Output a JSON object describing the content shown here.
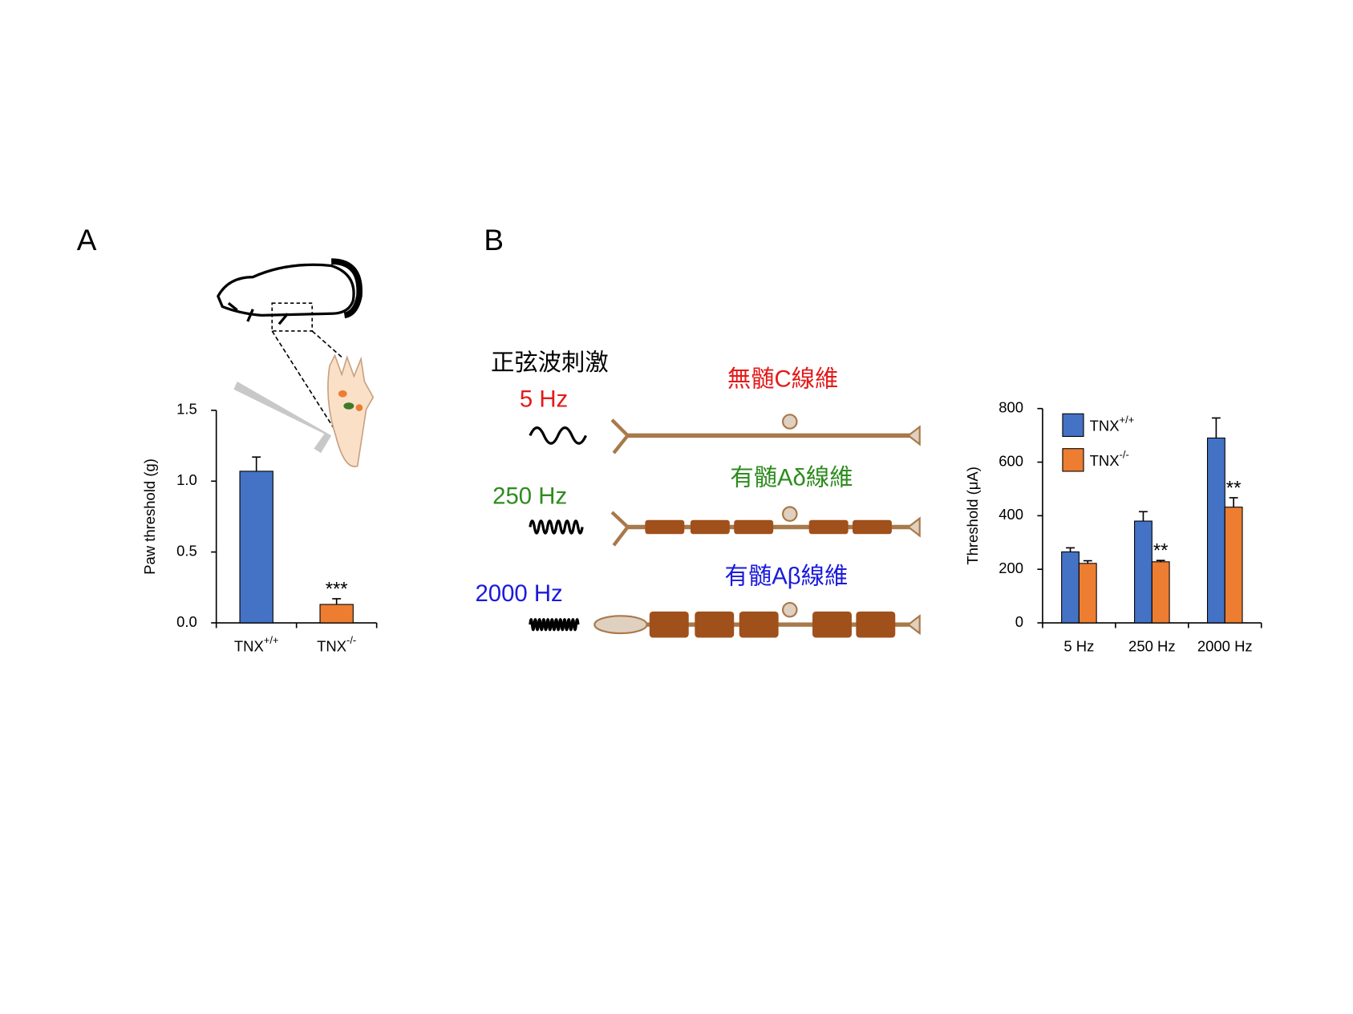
{
  "panels": [
    "A",
    "B"
  ],
  "diagram": {
    "stimulus_title": "正弦波刺激",
    "frequencies": [
      "5 Hz",
      "250 Hz",
      "2000 Hz"
    ],
    "fibers": [
      "無髄C線維",
      "有髄Aδ線維",
      "有髄Aβ線維"
    ]
  },
  "chart_data": [
    {
      "type": "bar",
      "ylabel": "Paw threshold (g)",
      "categories": [
        "TNX+/+",
        "TNX-/-"
      ],
      "values": [
        1.07,
        0.13
      ],
      "errors": [
        0.1,
        0.04
      ],
      "colors": [
        "#4472c4",
        "#ed7d31"
      ],
      "ylim": [
        0,
        1.5
      ],
      "yticks": [
        {
          "value": 0,
          "label": "0.0"
        },
        0.5,
        {
          "value": 1,
          "label": "1.0"
        },
        1.5
      ],
      "annotations": [
        {
          "text": "***",
          "index": 1
        }
      ]
    },
    {
      "type": "grouped_bar",
      "ylabel": "Threshold (μA)",
      "categories": [
        "5 Hz",
        "250 Hz",
        "2000 Hz"
      ],
      "series": [
        {
          "name": "TNX+/+",
          "color": "#4472c4",
          "values": [
            265,
            380,
            690
          ],
          "errors": [
            15,
            35,
            75
          ]
        },
        {
          "name": "TNX-/-",
          "color": "#ed7d31",
          "values": [
            222,
            228,
            432
          ],
          "errors": [
            10,
            5,
            35
          ]
        }
      ],
      "ylim": [
        0,
        800
      ],
      "yticks": [
        0,
        200,
        400,
        600,
        800
      ],
      "legend": "upper left",
      "annotations": [
        {
          "text": "**",
          "series": 1,
          "index": 1
        },
        {
          "text": "**",
          "series": 1,
          "index": 2
        }
      ]
    }
  ]
}
